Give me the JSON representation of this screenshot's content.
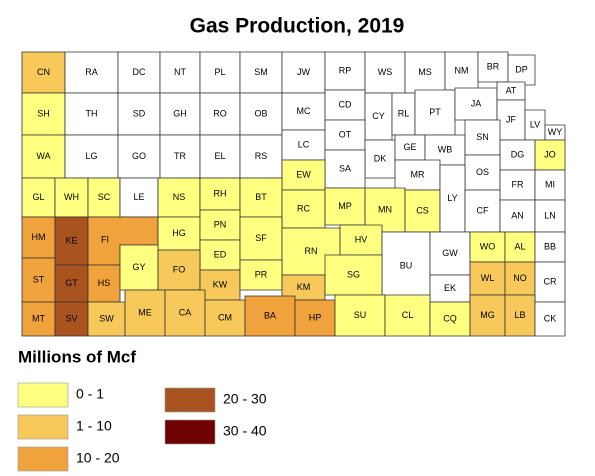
{
  "title": "Gas Production, 2019",
  "counties": [
    {
      "label": "CN",
      "color": "#f7c95a"
    },
    {
      "label": "RA",
      "color": "#ffffff"
    },
    {
      "label": "DC",
      "color": "#ffffff"
    },
    {
      "label": "NT",
      "color": "#ffffff"
    },
    {
      "label": "PL",
      "color": "#ffffff"
    },
    {
      "label": "SM",
      "color": "#ffffff"
    },
    {
      "label": "JW",
      "color": "#ffffff"
    },
    {
      "label": "RP",
      "color": "#ffffff"
    },
    {
      "label": "WS",
      "color": "#ffffff"
    },
    {
      "label": "MS",
      "color": "#ffffff"
    },
    {
      "label": "NM",
      "color": "#ffffff"
    },
    {
      "label": "BR",
      "color": "#ffffff"
    },
    {
      "label": "DP",
      "color": "#ffffff"
    },
    {
      "label": "SH",
      "color": "#ffff80"
    },
    {
      "label": "TH",
      "color": "#ffffff"
    },
    {
      "label": "SD",
      "color": "#ffffff"
    },
    {
      "label": "GH",
      "color": "#ffffff"
    },
    {
      "label": "RO",
      "color": "#ffffff"
    },
    {
      "label": "OB",
      "color": "#ffffff"
    },
    {
      "label": "MC",
      "color": "#ffffff"
    },
    {
      "label": "CD",
      "color": "#ffffff"
    },
    {
      "label": "CY",
      "color": "#ffffff"
    },
    {
      "label": "RL",
      "color": "#ffffff"
    },
    {
      "label": "PT",
      "color": "#ffffff"
    },
    {
      "label": "JA",
      "color": "#ffffff"
    },
    {
      "label": "AT",
      "color": "#ffffff"
    },
    {
      "label": "JF",
      "color": "#ffffff"
    },
    {
      "label": "LV",
      "color": "#ffffff"
    },
    {
      "label": "WY",
      "color": "#ffffff"
    },
    {
      "label": "WA",
      "color": "#ffff80"
    },
    {
      "label": "LG",
      "color": "#ffffff"
    },
    {
      "label": "GO",
      "color": "#ffffff"
    },
    {
      "label": "TR",
      "color": "#ffffff"
    },
    {
      "label": "EL",
      "color": "#ffffff"
    },
    {
      "label": "RS",
      "color": "#ffffff"
    },
    {
      "label": "LC",
      "color": "#ffffff"
    },
    {
      "label": "OT",
      "color": "#ffffff"
    },
    {
      "label": "DK",
      "color": "#ffffff"
    },
    {
      "label": "GE",
      "color": "#ffffff"
    },
    {
      "label": "WB",
      "color": "#ffffff"
    },
    {
      "label": "SN",
      "color": "#ffffff"
    },
    {
      "label": "DG",
      "color": "#ffffff"
    },
    {
      "label": "JO",
      "color": "#ffff80"
    },
    {
      "label": "SA",
      "color": "#ffffff"
    },
    {
      "label": "EW",
      "color": "#ffff80"
    },
    {
      "label": "MR",
      "color": "#ffffff"
    },
    {
      "label": "OS",
      "color": "#ffffff"
    },
    {
      "label": "FR",
      "color": "#ffffff"
    },
    {
      "label": "MI",
      "color": "#ffffff"
    },
    {
      "label": "GL",
      "color": "#ffff80"
    },
    {
      "label": "WH",
      "color": "#ffff80"
    },
    {
      "label": "SC",
      "color": "#ffff80"
    },
    {
      "label": "LE",
      "color": "#ffffff"
    },
    {
      "label": "NS",
      "color": "#ffff80"
    },
    {
      "label": "RH",
      "color": "#ffff80"
    },
    {
      "label": "BT",
      "color": "#ffff80"
    },
    {
      "label": "RC",
      "color": "#ffff80"
    },
    {
      "label": "MP",
      "color": "#ffff80"
    },
    {
      "label": "MN",
      "color": "#ffff80"
    },
    {
      "label": "CS",
      "color": "#ffff80"
    },
    {
      "label": "LY",
      "color": "#ffffff"
    },
    {
      "label": "CF",
      "color": "#ffffff"
    },
    {
      "label": "AN",
      "color": "#ffffff"
    },
    {
      "label": "LN",
      "color": "#ffffff"
    },
    {
      "label": "HM",
      "color": "#f0a33c"
    },
    {
      "label": "KE",
      "color": "#a9541e"
    },
    {
      "label": "FI",
      "color": "#f0a33c"
    },
    {
      "label": "HG",
      "color": "#ffff80"
    },
    {
      "label": "PN",
      "color": "#ffff80"
    },
    {
      "label": "ED",
      "color": "#ffff80"
    },
    {
      "label": "SF",
      "color": "#ffff80"
    },
    {
      "label": "RN",
      "color": "#ffff80"
    },
    {
      "label": "HV",
      "color": "#ffff80"
    },
    {
      "label": "BU",
      "color": "#ffffff"
    },
    {
      "label": "GW",
      "color": "#ffffff"
    },
    {
      "label": "WO",
      "color": "#ffff80"
    },
    {
      "label": "AL",
      "color": "#ffff80"
    },
    {
      "label": "BB",
      "color": "#ffffff"
    },
    {
      "label": "ST",
      "color": "#f0a33c"
    },
    {
      "label": "GT",
      "color": "#a9541e"
    },
    {
      "label": "HS",
      "color": "#f0a33c"
    },
    {
      "label": "GY",
      "color": "#ffff80"
    },
    {
      "label": "FO",
      "color": "#f7c95a"
    },
    {
      "label": "KW",
      "color": "#f7c95a"
    },
    {
      "label": "PR",
      "color": "#ffff80"
    },
    {
      "label": "KM",
      "color": "#f7c95a"
    },
    {
      "label": "SG",
      "color": "#ffff80"
    },
    {
      "label": "EK",
      "color": "#ffffff"
    },
    {
      "label": "WL",
      "color": "#f7c95a"
    },
    {
      "label": "NO",
      "color": "#f7c95a"
    },
    {
      "label": "CR",
      "color": "#ffffff"
    },
    {
      "label": "MT",
      "color": "#f0a33c"
    },
    {
      "label": "SV",
      "color": "#a9541e"
    },
    {
      "label": "SW",
      "color": "#f7c95a"
    },
    {
      "label": "ME",
      "color": "#f7c95a"
    },
    {
      "label": "CA",
      "color": "#f7c95a"
    },
    {
      "label": "CM",
      "color": "#f7c95a"
    },
    {
      "label": "BA",
      "color": "#f0a33c"
    },
    {
      "label": "HP",
      "color": "#f0a33c"
    },
    {
      "label": "SU",
      "color": "#ffff80"
    },
    {
      "label": "CL",
      "color": "#ffff80"
    },
    {
      "label": "CQ",
      "color": "#ffff80"
    },
    {
      "label": "MG",
      "color": "#f7c95a"
    },
    {
      "label": "LB",
      "color": "#f7c95a"
    },
    {
      "label": "CK",
      "color": "#ffffff"
    }
  ],
  "legend": {
    "title": "Millions of Mcf",
    "items": [
      {
        "label": "0 - 1",
        "color": "#ffff80"
      },
      {
        "label": "1 - 10",
        "color": "#f7c95a"
      },
      {
        "label": "10 - 20",
        "color": "#f0a33c"
      },
      {
        "label": "20 - 30",
        "color": "#a9541e"
      },
      {
        "label": "30 - 40",
        "color": "#6e0000"
      }
    ]
  }
}
